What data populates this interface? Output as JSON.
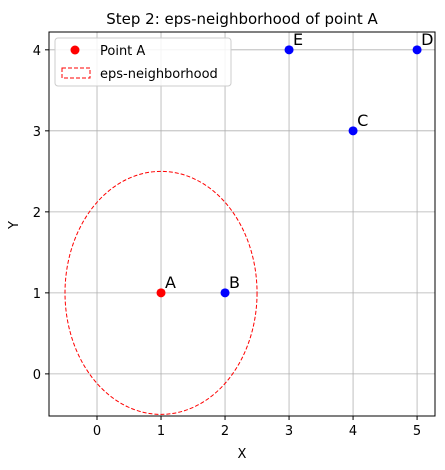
{
  "chart_data": {
    "type": "scatter",
    "title": "Step 2: eps-neighborhood of point A",
    "xlabel": "X",
    "ylabel": "Y",
    "xlim": [
      -0.75,
      5.28
    ],
    "ylim": [
      -0.52,
      4.22
    ],
    "xticks": [
      0,
      1,
      2,
      3,
      4,
      5
    ],
    "yticks": [
      0,
      1,
      2,
      3,
      4
    ],
    "grid": true,
    "legend_placement": "upper left",
    "points": [
      {
        "label": "A",
        "x": 1,
        "y": 1,
        "color": "#ff0000"
      },
      {
        "label": "B",
        "x": 2,
        "y": 1,
        "color": "#0000ff"
      },
      {
        "label": "C",
        "x": 4,
        "y": 3,
        "color": "#0000ff"
      },
      {
        "label": "D",
        "x": 5,
        "y": 4,
        "color": "#0000ff"
      },
      {
        "label": "E",
        "x": 3,
        "y": 4,
        "color": "#0000ff"
      }
    ],
    "neighborhood": {
      "center": [
        1,
        1
      ],
      "radius": 1.5,
      "color": "#ff0000",
      "style": "dashed"
    },
    "legend": [
      {
        "label": "Point A",
        "kind": "marker",
        "color": "#ff0000"
      },
      {
        "label": "eps-neighborhood",
        "kind": "dashed-box",
        "color": "#ff0000"
      }
    ]
  }
}
